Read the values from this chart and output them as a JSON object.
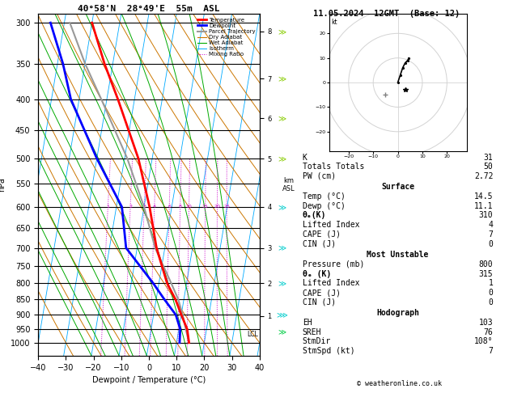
{
  "title_left": "40°58'N  28°49'E  55m  ASL",
  "title_right": "11.05.2024  12GMT  (Base: 12)",
  "xlabel": "Dewpoint / Temperature (°C)",
  "ylabel_left": "hPa",
  "pressure_levels": [
    300,
    350,
    400,
    450,
    500,
    550,
    600,
    650,
    700,
    750,
    800,
    850,
    900,
    950,
    1000
  ],
  "temp_xlim": [
    -40,
    40
  ],
  "skew_factor": 0.62,
  "temp_profile": {
    "pressure": [
      1000,
      950,
      900,
      850,
      800,
      700,
      600,
      500,
      400,
      350,
      300
    ],
    "temperature": [
      14.5,
      13.0,
      10.0,
      7.0,
      3.0,
      -3.0,
      -8.0,
      -15.0,
      -26.0,
      -33.0,
      -40.0
    ]
  },
  "dewp_profile": {
    "pressure": [
      1000,
      950,
      900,
      850,
      800,
      700,
      600,
      500,
      400,
      350,
      300
    ],
    "dewpoint": [
      11.1,
      10.5,
      8.0,
      3.0,
      -2.0,
      -14.0,
      -18.0,
      -30.0,
      -43.0,
      -48.0,
      -55.0
    ]
  },
  "parcel_profile": {
    "pressure": [
      1000,
      950,
      900,
      850,
      800,
      700,
      600,
      500,
      400,
      350,
      300
    ],
    "temperature": [
      14.5,
      12.5,
      10.5,
      8.0,
      4.5,
      -3.5,
      -10.0,
      -19.0,
      -32.0,
      -40.0,
      -48.0
    ]
  },
  "mixing_ratio_values": [
    1,
    2,
    3,
    4,
    6,
    8,
    10,
    15,
    20,
    25
  ],
  "km_ticks": [
    1,
    2,
    3,
    4,
    5,
    6,
    7,
    8
  ],
  "km_pressures": [
    905,
    800,
    700,
    600,
    500,
    430,
    370,
    310
  ],
  "lcl_pressure": 968,
  "legend_entries": [
    {
      "label": "Temperature",
      "color": "#ff0000",
      "lw": 2.0,
      "ls": "solid"
    },
    {
      "label": "Dewpoint",
      "color": "#0000ff",
      "lw": 2.0,
      "ls": "solid"
    },
    {
      "label": "Parcel Trajectory",
      "color": "#999999",
      "lw": 1.5,
      "ls": "solid"
    },
    {
      "label": "Dry Adiabat",
      "color": "#cc7700",
      "lw": 0.8,
      "ls": "solid"
    },
    {
      "label": "Wet Adiabat",
      "color": "#00aa00",
      "lw": 0.8,
      "ls": "solid"
    },
    {
      "label": "Isotherm",
      "color": "#00aaff",
      "lw": 0.7,
      "ls": "solid"
    },
    {
      "label": "Mixing Ratio",
      "color": "#cc00cc",
      "lw": 0.7,
      "ls": "dotted"
    }
  ],
  "panel_data": {
    "K": 31,
    "Totals_Totals": 50,
    "PW_cm": 2.72,
    "Surface_Temp": 14.5,
    "Surface_Dewp": 11.1,
    "Surface_theta_e": 310,
    "Surface_LI": 4,
    "Surface_CAPE": 7,
    "Surface_CIN": 0,
    "MU_Pressure": 800,
    "MU_theta_e": 315,
    "MU_LI": 1,
    "MU_CAPE": 0,
    "MU_CIN": 0,
    "EH": 103,
    "SREH": 76,
    "StmDir": 108,
    "StmSpd": 7
  },
  "hodo_u": [
    0,
    1,
    2,
    3,
    4,
    4.5
  ],
  "hodo_v": [
    0,
    3,
    6,
    8,
    9,
    10
  ],
  "bg_color": "#ffffff"
}
